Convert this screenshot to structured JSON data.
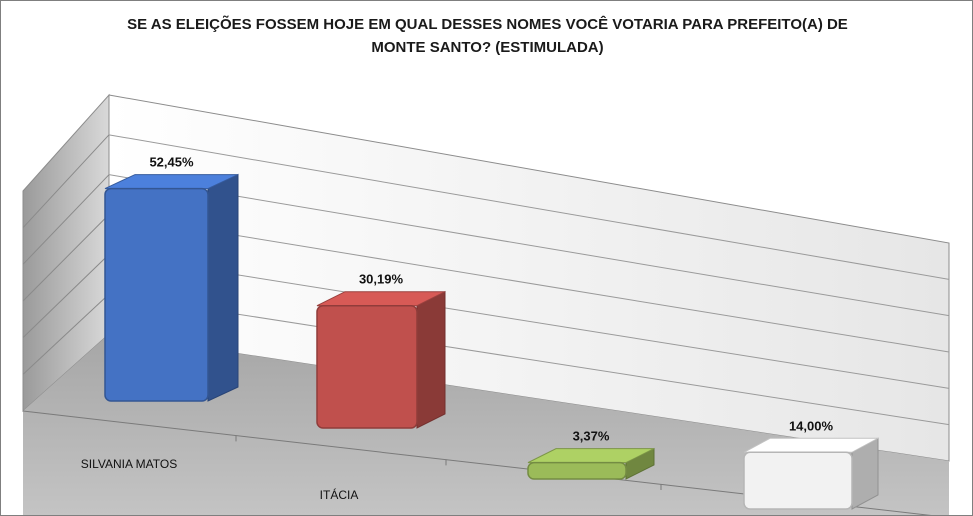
{
  "chart_data": {
    "type": "bar",
    "title_lines": [
      "SE AS ELEIÇÕES FOSSEM HOJE EM QUAL DESSES NOMES VOCÊ VOTARIA PARA PREFEITO(A) DE",
      "MONTE SANTO? (ESTIMULADA)"
    ],
    "categories": [
      "SILVANIA MATOS",
      "ITÁCIA",
      "",
      ""
    ],
    "values": [
      52.45,
      30.19,
      3.37,
      14.0
    ],
    "value_labels": [
      "52,45%",
      "30,19%",
      "3,37%",
      "14,00%"
    ],
    "colors": [
      "#4472c4",
      "#c0504d",
      "#9bbb59",
      "#f2f2f2"
    ],
    "ylim": [
      0,
      60
    ],
    "grid": true,
    "legend": "none",
    "style": "3d-perspective"
  }
}
